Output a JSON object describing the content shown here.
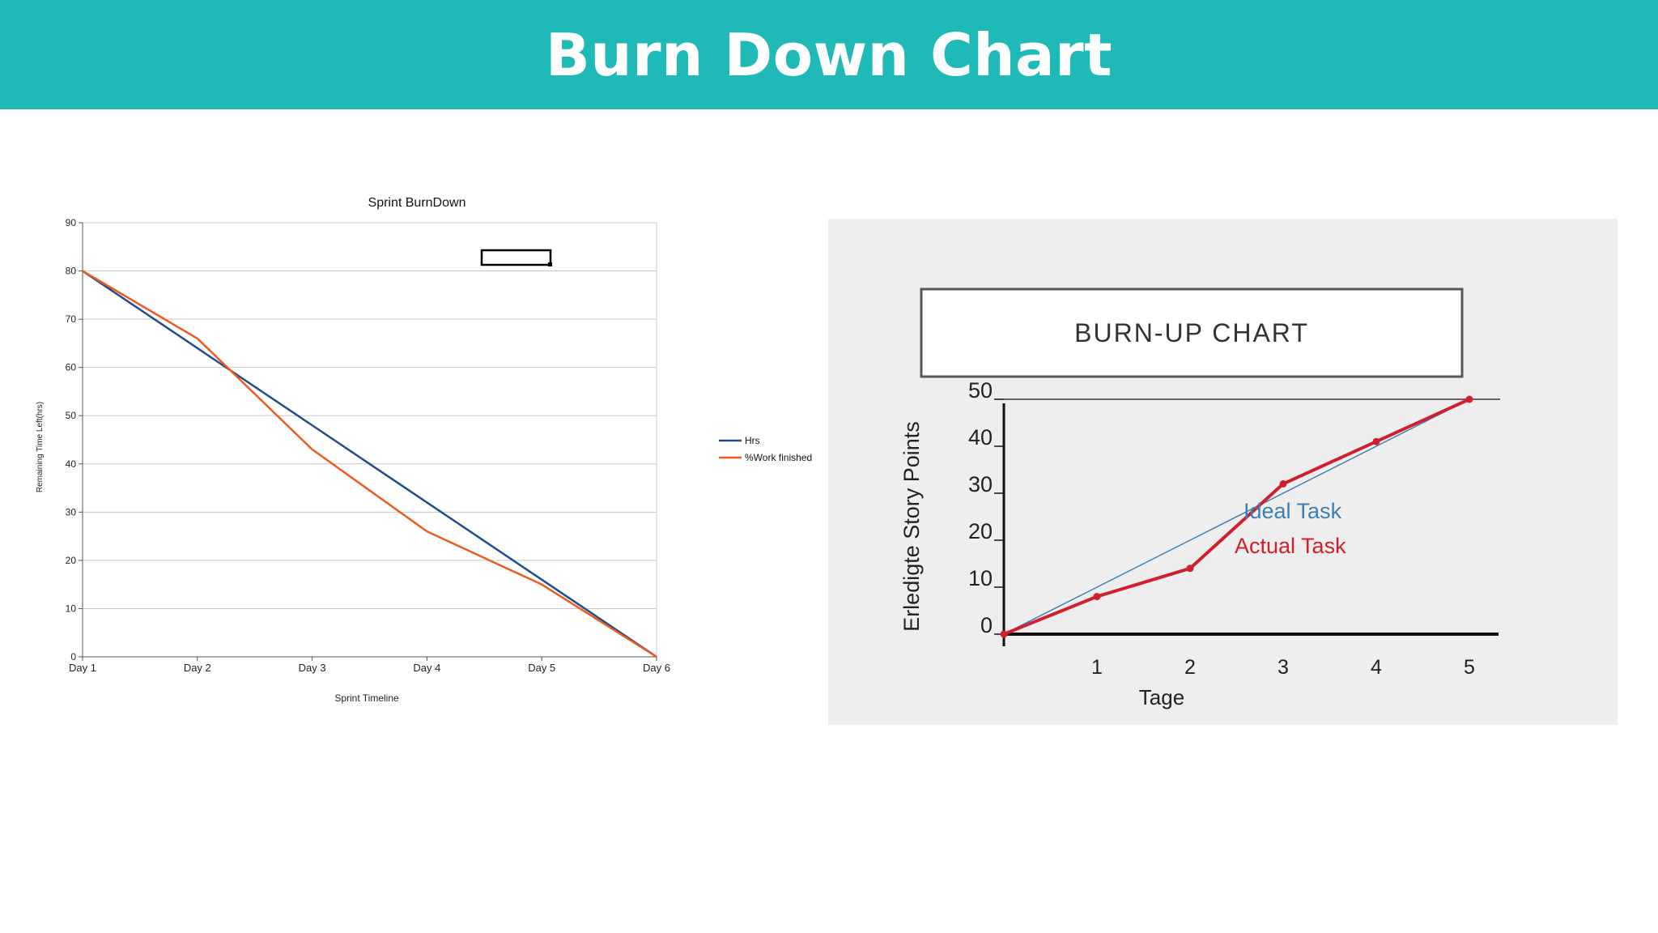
{
  "header": {
    "title": "Burn Down Chart",
    "background": "#1fb9b7"
  },
  "chart_data": [
    {
      "type": "line",
      "title": "Sprint BurnDown",
      "xlabel": "Sprint Timeline",
      "ylabel": "Remaining Time Left(hrs)",
      "categories": [
        "Day 1",
        "Day 2",
        "Day 3",
        "Day 4",
        "Day 5",
        "Day 6"
      ],
      "ylim": [
        0,
        90
      ],
      "yticks": [
        0,
        10,
        20,
        30,
        40,
        50,
        60,
        70,
        80,
        90
      ],
      "grid": true,
      "legend": "right",
      "series": [
        {
          "name": "Hrs",
          "color": "#1f4e8c",
          "values": [
            80,
            64,
            48,
            32,
            16,
            0
          ]
        },
        {
          "name": "%Work finished",
          "color": "#ee5a1e",
          "values": [
            80,
            66,
            43,
            26,
            15,
            0
          ]
        }
      ]
    },
    {
      "type": "line",
      "title": "BURN-UP CHART",
      "xlabel": "Tage",
      "ylabel": "Erledigte Story Points",
      "x": [
        0,
        1,
        2,
        3,
        4,
        5
      ],
      "xticks": [
        1,
        2,
        3,
        4,
        5
      ],
      "ylim": [
        0,
        50
      ],
      "yticks": [
        0,
        10,
        20,
        30,
        40,
        50
      ],
      "legend": "right",
      "series": [
        {
          "name": "Ideal Task",
          "color": "#3b7fb5",
          "values": [
            0,
            10,
            20,
            30,
            40,
            50
          ]
        },
        {
          "name": "Actual Task",
          "color": "#d0202e",
          "values": [
            0,
            8,
            14,
            32,
            41,
            50
          ]
        }
      ]
    }
  ]
}
